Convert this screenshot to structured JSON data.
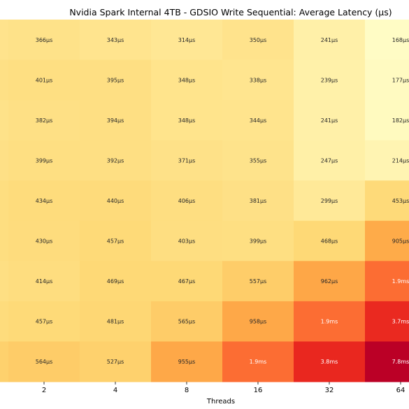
{
  "chart_data": {
    "type": "heatmap",
    "title": "Nvidia Spark Internal 4TB - GDSIO Write Sequential: Average Latency (µs)",
    "xlabel": "Threads",
    "ylabel": "",
    "x_ticks": [
      "2",
      "4",
      "8",
      "16",
      "32",
      "64"
    ],
    "grid": false,
    "colormap": "YlOrRd",
    "rows": [
      {
        "values_us": [
          366,
          343,
          314,
          350,
          241,
          168
        ],
        "labels": [
          "366µs",
          "343µs",
          "314µs",
          "350µs",
          "241µs",
          "168µs"
        ]
      },
      {
        "values_us": [
          401,
          395,
          348,
          338,
          239,
          177
        ],
        "labels": [
          "401µs",
          "395µs",
          "348µs",
          "338µs",
          "239µs",
          "177µs"
        ]
      },
      {
        "values_us": [
          382,
          394,
          348,
          344,
          241,
          182
        ],
        "labels": [
          "382µs",
          "394µs",
          "348µs",
          "344µs",
          "241µs",
          "182µs"
        ]
      },
      {
        "values_us": [
          399,
          392,
          371,
          355,
          247,
          214
        ],
        "labels": [
          "399µs",
          "392µs",
          "371µs",
          "355µs",
          "247µs",
          "214µs"
        ]
      },
      {
        "values_us": [
          434,
          440,
          406,
          381,
          299,
          453
        ],
        "labels": [
          "434µs",
          "440µs",
          "406µs",
          "381µs",
          "299µs",
          "453µs"
        ]
      },
      {
        "values_us": [
          430,
          457,
          403,
          399,
          468,
          905
        ],
        "labels": [
          "430µs",
          "457µs",
          "403µs",
          "399µs",
          "468µs",
          "905µs"
        ]
      },
      {
        "values_us": [
          414,
          469,
          467,
          557,
          962,
          1900
        ],
        "labels": [
          "414µs",
          "469µs",
          "467µs",
          "557µs",
          "962µs",
          "1.9ms"
        ]
      },
      {
        "values_us": [
          457,
          481,
          565,
          958,
          1900,
          3700
        ],
        "labels": [
          "457µs",
          "481µs",
          "565µs",
          "958µs",
          "1.9ms",
          "3.7ms"
        ]
      },
      {
        "values_us": [
          564,
          527,
          955,
          1900,
          3800,
          7800
        ],
        "labels": [
          "564µs",
          "527µs",
          "955µs",
          "1.9ms",
          "3.8ms",
          "7.8ms"
        ]
      }
    ]
  }
}
